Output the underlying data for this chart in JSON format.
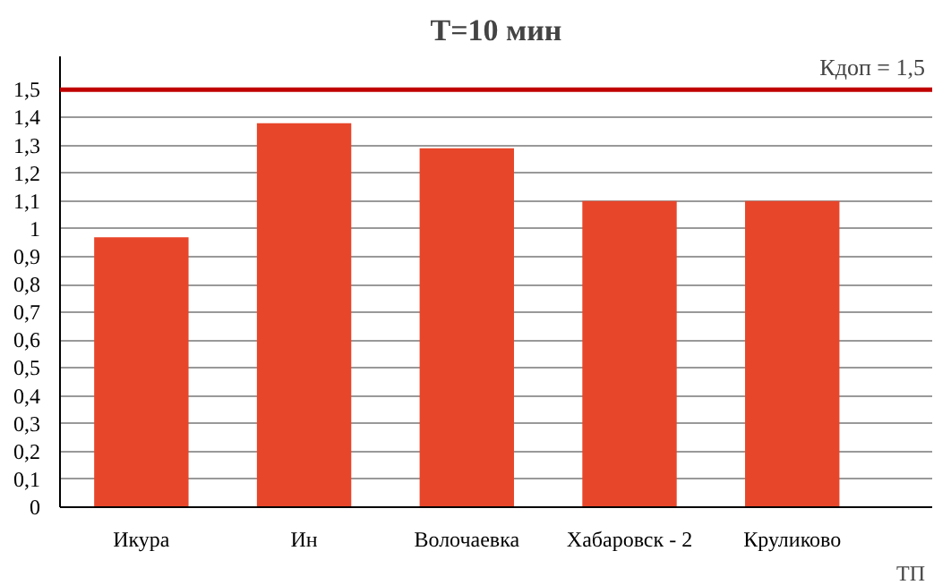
{
  "chart_data": {
    "type": "bar",
    "title": "T=10 мин",
    "xlabel": "ТП",
    "categories": [
      "Икура",
      "Ин",
      "Волочаевка",
      "Хабаровск - 2",
      "Круликово"
    ],
    "values": [
      0.97,
      1.38,
      1.29,
      1.1,
      1.1
    ],
    "color": "#e8462a",
    "ylim": [
      0,
      1.62
    ],
    "yticks": [
      0,
      {
        "value": 0.1,
        "label": "0,1"
      },
      {
        "value": 0.2,
        "label": "0,2"
      },
      {
        "value": 0.3,
        "label": "0,3"
      },
      {
        "value": 0.4,
        "label": "0,4"
      },
      {
        "value": 0.5,
        "label": "0,5"
      },
      {
        "value": 0.6,
        "label": "0,6"
      },
      {
        "value": 0.7,
        "label": "0,7"
      },
      {
        "value": 0.8,
        "label": "0,8"
      },
      {
        "value": 0.9,
        "label": "0,9"
      },
      1,
      {
        "value": 1.1,
        "label": "1,1"
      },
      {
        "value": 1.2,
        "label": "1,2"
      },
      {
        "value": 1.3,
        "label": "1,3"
      },
      {
        "value": 1.4,
        "label": "1,4"
      },
      {
        "value": 1.5,
        "label": "1,5"
      }
    ],
    "grid": "y",
    "ref_lines": [
      {
        "axis": "y",
        "value": 1.5,
        "label": "Кдоп = 1,5",
        "color": "#c00000"
      }
    ]
  }
}
